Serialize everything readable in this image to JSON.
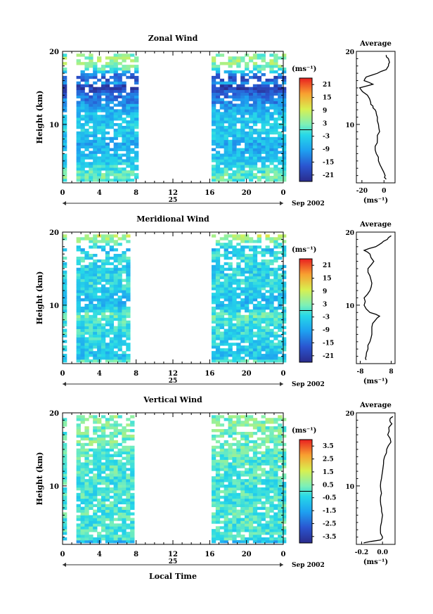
{
  "chart_data": [
    {
      "type": "heatmap",
      "title": "Zonal Wind",
      "ylabel": "Height (km)",
      "ylim": [
        2,
        20
      ],
      "xlim": [
        0,
        24
      ],
      "x_ticks": [
        "0",
        "4",
        "8",
        "12",
        "16",
        "20",
        "0"
      ],
      "y_ticks": [
        "10",
        "20"
      ],
      "date_label": "25",
      "month_label": "Sep 2002",
      "data_coverage_hours": [
        [
          0,
          0.1
        ],
        [
          1.5,
          8
        ],
        [
          16.2,
          24
        ]
      ],
      "colorbar": {
        "unit": "(ms⁻¹)",
        "range": [
          -24,
          24
        ],
        "tick_labels": [
          "21",
          "15",
          "9",
          "3",
          "-3",
          "-9",
          "-15",
          "-21"
        ]
      },
      "average_profile": {
        "title": "Average",
        "xlabel": "(ms⁻¹)",
        "x_ticks": [
          "-20",
          "0"
        ],
        "xlim": [
          -25,
          10
        ],
        "heights": [
          2.5,
          3,
          4,
          5,
          6,
          7,
          8,
          9,
          10,
          11,
          11.5,
          12,
          12.5,
          13,
          14,
          15,
          15.5,
          16,
          16.5,
          17,
          17.5,
          18,
          18.5,
          19,
          19.5
        ],
        "values": [
          2,
          1,
          -2,
          -5,
          -7,
          -8,
          -6,
          -4,
          -5,
          -6,
          -7,
          -8,
          -10,
          -12,
          -15,
          -22,
          -10,
          -18,
          -16,
          -6,
          2,
          4,
          5,
          4,
          2
        ]
      }
    },
    {
      "type": "heatmap",
      "title": "Meridional Wind",
      "ylabel": "Height (km)",
      "ylim": [
        2,
        20
      ],
      "xlim": [
        0,
        24
      ],
      "x_ticks": [
        "0",
        "4",
        "8",
        "12",
        "16",
        "20",
        "0"
      ],
      "y_ticks": [
        "10",
        "20"
      ],
      "date_label": "25",
      "month_label": "Sep 2002",
      "data_coverage_hours": [
        [
          0,
          0.1
        ],
        [
          1.5,
          7
        ],
        [
          16.2,
          24
        ]
      ],
      "colorbar": {
        "unit": "(ms⁻¹)",
        "range": [
          -24,
          24
        ],
        "tick_labels": [
          "21",
          "15",
          "9",
          "3",
          "-3",
          "-9",
          "-15",
          "-21"
        ]
      },
      "average_profile": {
        "title": "Average",
        "xlabel": "(ms⁻¹)",
        "x_ticks": [
          "-8",
          "8"
        ],
        "xlim": [
          -10,
          10
        ],
        "heights": [
          2.5,
          3,
          4,
          5,
          6,
          7,
          8,
          8.5,
          9,
          10,
          11,
          12,
          13,
          14,
          15,
          16,
          17,
          17.5,
          18,
          18.5,
          19,
          19.5
        ],
        "values": [
          -5,
          -5,
          -4,
          -3,
          -2,
          -2,
          0,
          2,
          -3,
          -6,
          -6,
          -3,
          -2,
          -3,
          -4,
          -1,
          -3,
          -6,
          0,
          3,
          6,
          8
        ]
      }
    },
    {
      "type": "heatmap",
      "title": "Vertical Wind",
      "ylabel": "Height (km)",
      "xlabel": "Local Time",
      "ylim": [
        2,
        20
      ],
      "xlim": [
        0,
        24
      ],
      "x_ticks": [
        "0",
        "4",
        "8",
        "12",
        "16",
        "20",
        "0"
      ],
      "y_ticks": [
        "10",
        "20"
      ],
      "date_label": "25",
      "month_label": "Sep 2002",
      "data_coverage_hours": [
        [
          0,
          0.1
        ],
        [
          1.5,
          7.5
        ],
        [
          16.2,
          24
        ]
      ],
      "colorbar": {
        "unit": "(ms⁻¹)",
        "range": [
          -4,
          4
        ],
        "tick_labels": [
          "3.5",
          "2.5",
          "1.5",
          "0.5",
          "-0.5",
          "-1.5",
          "-2.5",
          "-3.5"
        ]
      },
      "average_profile": {
        "title": "Average",
        "xlabel": "(ms⁻¹)",
        "x_ticks": [
          "-0.2",
          "0.0"
        ],
        "xlim": [
          -0.25,
          0.12
        ],
        "heights": [
          2.2,
          2.6,
          3,
          4,
          5,
          6,
          7,
          8,
          9,
          10,
          11,
          12,
          13,
          14,
          15,
          16,
          17,
          18,
          18.5,
          19,
          19.5
        ],
        "values": [
          -0.18,
          -0.02,
          0.0,
          -0.02,
          -0.01,
          0.0,
          -0.01,
          -0.02,
          -0.01,
          -0.02,
          -0.01,
          0.0,
          0.01,
          0.02,
          0.04,
          0.08,
          0.05,
          0.06,
          0.09,
          0.07,
          0.1
        ]
      }
    }
  ]
}
